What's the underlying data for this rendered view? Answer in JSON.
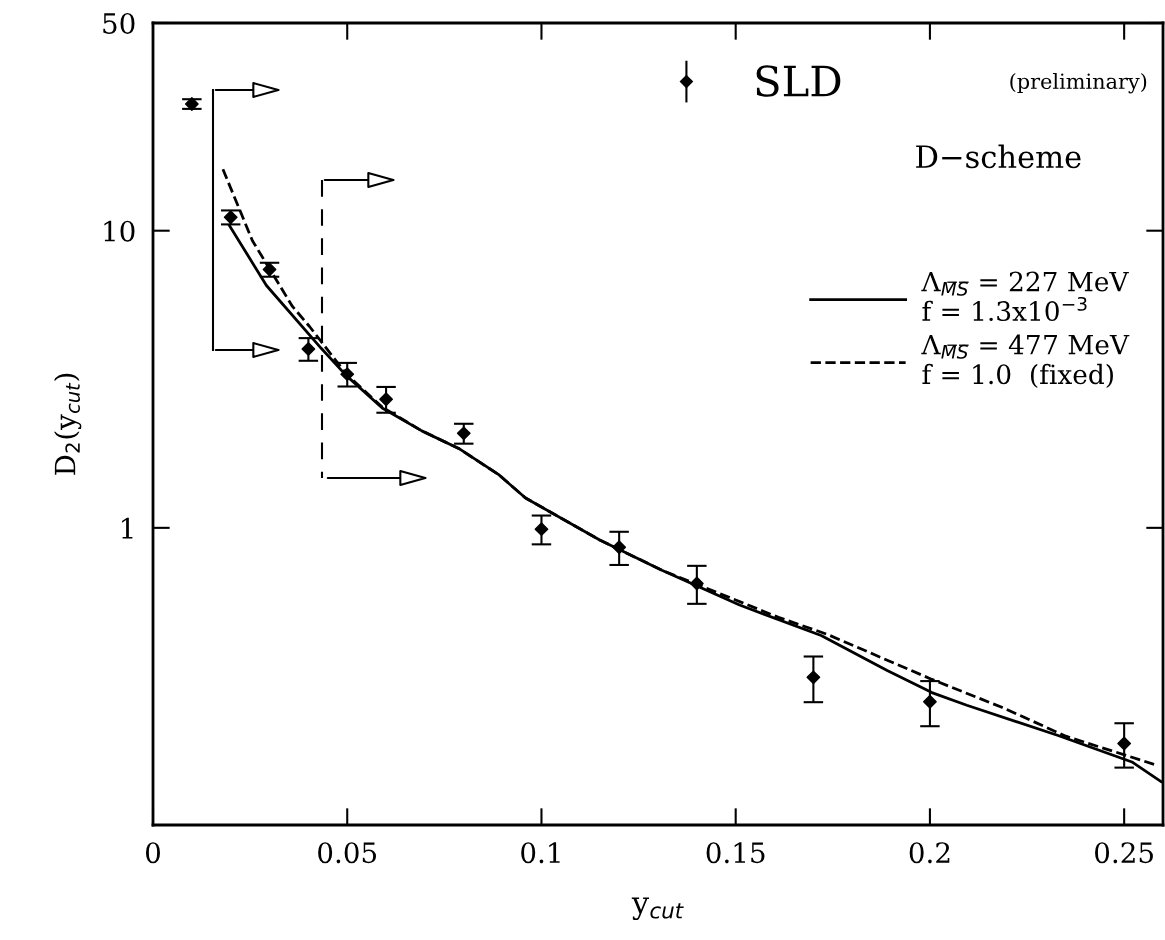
{
  "chart_data": {
    "type": "scatter",
    "xlabel": "y$_{cut}$",
    "ylabel": "D$_{2}$(y$_{cut}$)",
    "xlim": [
      0,
      0.26
    ],
    "xticks": [
      0,
      0.05,
      0.1,
      0.15,
      0.2,
      0.25
    ],
    "ylim": [
      0.1,
      50
    ],
    "yticks": [
      1,
      10,
      50
    ],
    "log": "y",
    "grid": false,
    "legend": "top right",
    "series": [
      {
        "name": "SLD",
        "type": "scatter",
        "marker": "diamond",
        "color": "#000000",
        "x": [
          0.01,
          0.02,
          0.03,
          0.04,
          0.05,
          0.06,
          0.08,
          0.1,
          0.12,
          0.14,
          0.17,
          0.2,
          0.25
        ],
        "values": [
          26.7,
          11.1,
          7.4,
          4.0,
          3.29,
          2.71,
          2.08,
          0.99,
          0.86,
          0.65,
          0.314,
          0.26,
          0.188
        ],
        "errors": [
          1.0,
          0.6,
          0.4,
          0.35,
          0.3,
          0.27,
          0.16,
          0.11,
          0.11,
          0.095,
          0.055,
          0.045,
          0.032
        ]
      },
      {
        "name": "Λ$_{M̅S̅}$ = 227 MeV\nf = 1.3x10$^{−3}$",
        "type": "line",
        "line_style": "solid",
        "color": "#000000",
        "x": [
          0.0197,
          0.0292,
          0.0433,
          0.0497,
          0.059,
          0.0692,
          0.0787,
          0.089,
          0.0959,
          0.115,
          0.131,
          0.151,
          0.172,
          0.189,
          0.2005,
          0.2095,
          0.233,
          0.252,
          0.2595
        ],
        "values": [
          10.4,
          6.54,
          4.02,
          3.26,
          2.53,
          2.12,
          1.85,
          1.51,
          1.26,
          0.91,
          0.72,
          0.55,
          0.434,
          0.331,
          0.279,
          0.253,
          0.2,
          0.163,
          0.14
        ]
      },
      {
        "name": "Λ$_{M̅S̅}$ = 477 MeV\nf = 1.0  (fixed)",
        "type": "line",
        "line_style": "dashed",
        "color": "#000000",
        "x": [
          0.018,
          0.0256,
          0.0359,
          0.0403,
          0.0497,
          0.059,
          0.0692,
          0.0787,
          0.089,
          0.0959,
          0.115,
          0.131,
          0.161,
          0.1736,
          0.2005,
          0.2185,
          0.235,
          0.2577
        ],
        "values": [
          16.1,
          9.25,
          5.56,
          4.76,
          3.3,
          2.55,
          2.12,
          1.85,
          1.51,
          1.26,
          0.91,
          0.72,
          0.5,
          0.438,
          0.309,
          0.249,
          0.199,
          0.16
        ]
      }
    ],
    "annotations": [
      "(preliminary)",
      "D−scheme"
    ]
  }
}
